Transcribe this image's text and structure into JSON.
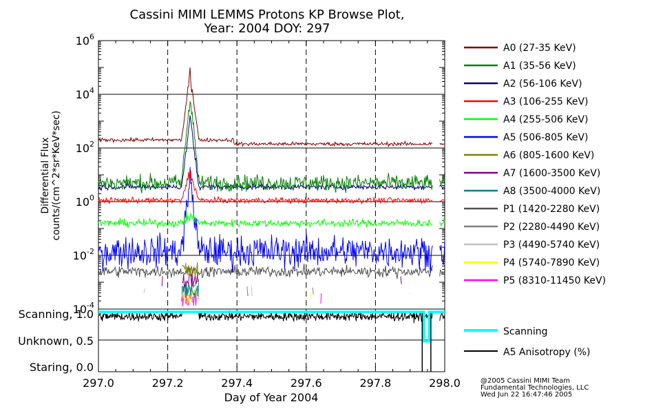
{
  "chart_data": {
    "type": "line",
    "title_lines": [
      "Cassini MIMI LEMMS Protons KP Browse Plot,",
      "Year: 2004 DOY: 297"
    ],
    "xlabel": "Day of Year 2004",
    "xlim": [
      297.0,
      298.0
    ],
    "x_ticks": [
      "297.0",
      "297.2",
      "297.4",
      "297.6",
      "297.8",
      "298.0"
    ],
    "x_tick_values": [
      297.0,
      297.2,
      297.4,
      297.6,
      297.8,
      298.0
    ],
    "x_dashed_lines": [
      297.2,
      297.4,
      297.6,
      297.8
    ],
    "ylabel_lines": [
      "Differential Flux",
      "counts/(cm^2*sr*KeV*sec)"
    ],
    "ylim_log10": [
      -4,
      6
    ],
    "y_scale": "log",
    "y_tick_labels": [
      {
        "exp": -4,
        "base": "10",
        "sup": "-4"
      },
      {
        "exp": -2,
        "base": "10",
        "sup": "-2"
      },
      {
        "exp": 0,
        "base": "10",
        "sup": "0"
      },
      {
        "exp": 2,
        "base": "10",
        "sup": "2"
      },
      {
        "exp": 4,
        "base": "10",
        "sup": "4"
      },
      {
        "exp": 6,
        "base": "10",
        "sup": "6"
      }
    ],
    "y_grid_exps": [
      -2,
      0,
      2,
      4
    ],
    "data_gap": [
      297.965,
      297.985
    ],
    "series": [
      {
        "name": "A0 (27-35 KeV)",
        "color": "#800000",
        "base_log": 2.25,
        "noise": 0.035,
        "pre_burst": 2.3,
        "post": 2.15,
        "peak_log": 4.8,
        "decimals": 2
      },
      {
        "name": "A1 (35-56 KeV)",
        "color": "#008000",
        "base_log": 0.7,
        "noise": 0.15,
        "peak_log": 4.0
      },
      {
        "name": "A2 (56-106 KeV)",
        "color": "#000080",
        "base_log": 0.55,
        "noise": 0.05,
        "peak_log": 3.1
      },
      {
        "name": "A3 (106-255 KeV)",
        "color": "#ff0000",
        "base_log": 0.05,
        "noise": 0.05,
        "peak_log": 1.1
      },
      {
        "name": "A4 (255-506 KeV)",
        "color": "#00ff00",
        "base_log": -0.8,
        "noise": 0.07,
        "peak_log": -0.5
      },
      {
        "name": "A5 (506-805 KeV)",
        "color": "#0000ff",
        "base_log": -1.85,
        "noise": 0.3,
        "peak_log": 0.9
      },
      {
        "name": "A6 (805-1600 KeV)",
        "color": "#808000",
        "base_log": -2.8,
        "noise": 0.3,
        "sparse": true
      },
      {
        "name": "A7 (1600-3500 KeV)",
        "color": "#800080",
        "base_log": -3.2,
        "noise": 0.1,
        "sparse": true
      },
      {
        "name": "A8 (3500-4000 KeV)",
        "color": "#008080",
        "base_log": -3.6,
        "noise": 0.1,
        "sparse": true
      },
      {
        "name": "P1 (1420-2280 KeV)",
        "color": "#505050",
        "base_log": -2.6,
        "noise": 0.1
      },
      {
        "name": "P2 (2280-4490 KeV)",
        "color": "#808080",
        "base_log": -3.5,
        "noise": 0.1,
        "sparse": true
      },
      {
        "name": "P3 (4490-5740 KeV)",
        "color": "#c0c0c0",
        "base_log": -3.7,
        "noise": 0.1,
        "sparse": true
      },
      {
        "name": "P4 (5740-7890 KeV)",
        "color": "#ffff00",
        "base_log": -3.8,
        "noise": 0.1,
        "sparse": true
      },
      {
        "name": "P5 (8310-11450 KeV)",
        "color": "#ff00ff",
        "base_log": -3.9,
        "noise": 0.1,
        "sparse": true
      }
    ],
    "burst": {
      "start": 297.24,
      "peak": 297.265,
      "end": 297.29
    },
    "lower_panel": {
      "y_labels": [
        "Scanning, 1.0",
        "Unknown, 0.5",
        "Staring, 0.0"
      ],
      "y_values": [
        1.0,
        0.5,
        0.0
      ],
      "scanning_color": "#00ffff",
      "scanning_dip": {
        "start": 297.94,
        "end": 297.955,
        "value": 0.48
      },
      "anisotropy_color": "#000000",
      "anisotropy_level": 0.92,
      "anisotropy_spike_x": [
        297.935,
        297.96
      ]
    },
    "lower_legend": [
      {
        "name": "Scanning",
        "color": "#00ffff"
      },
      {
        "name": "A5 Anisotropy (%)",
        "color": "#000000"
      }
    ],
    "footer_lines": [
      "@2005 Cassini MIMI Team",
      "Fundamental Technologies, LLC",
      "Wed Jun 22 16:47:46 2005"
    ]
  }
}
